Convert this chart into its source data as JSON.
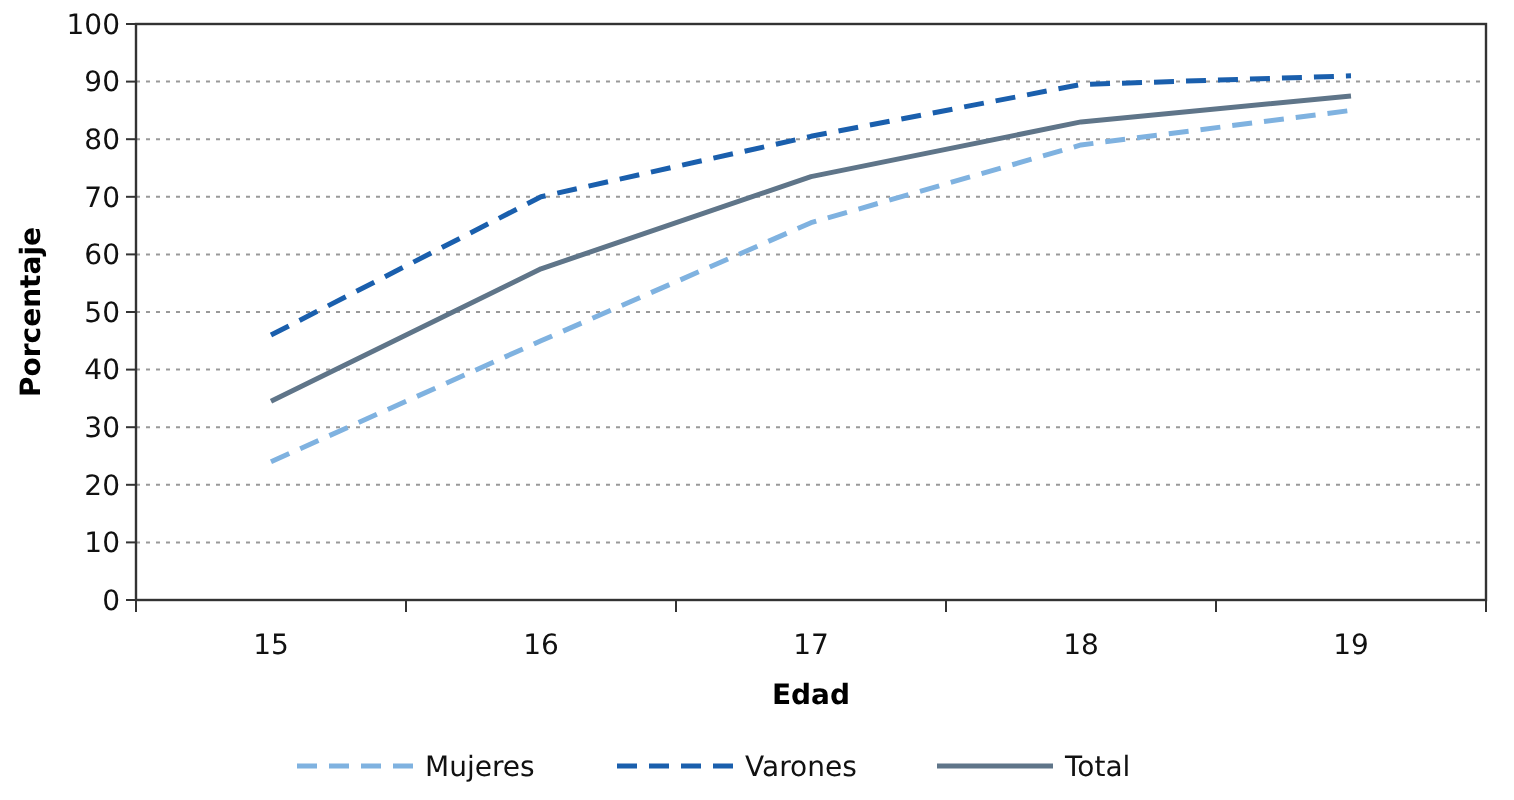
{
  "chart_data": {
    "type": "line",
    "xlabel": "Edad",
    "ylabel": "Porcentaje",
    "categories": [
      "15",
      "16",
      "17",
      "18",
      "19"
    ],
    "series": [
      {
        "name": "Mujeres",
        "color": "#7fb2e0",
        "line_style": "dashed",
        "values": [
          24,
          45,
          65.5,
          79,
          85
        ]
      },
      {
        "name": "Varones",
        "color": "#1a5fad",
        "line_style": "dashed",
        "values": [
          46,
          70,
          80.5,
          89.5,
          91
        ]
      },
      {
        "name": "Total",
        "color": "#5f7589",
        "line_style": "solid",
        "values": [
          34.5,
          57.5,
          73.5,
          83,
          87.5
        ]
      }
    ],
    "ylim": [
      0,
      100
    ],
    "yticks": [
      0,
      10,
      20,
      30,
      40,
      50,
      60,
      70,
      80,
      90,
      100
    ],
    "grid": "y",
    "legend": "bottom",
    "marker": "none"
  }
}
